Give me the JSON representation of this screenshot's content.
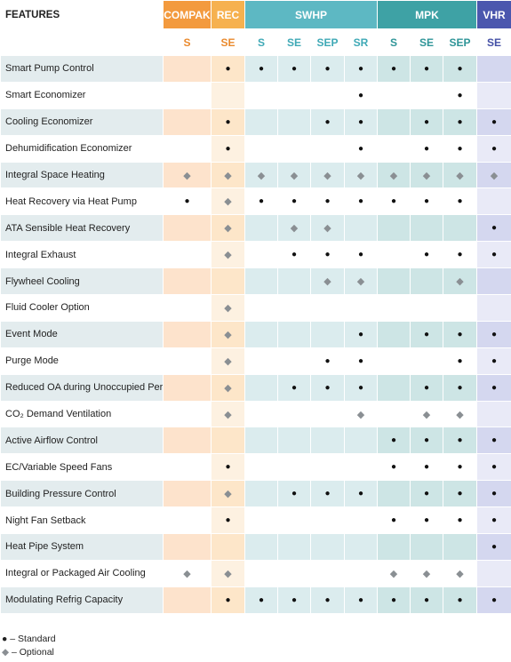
{
  "table": {
    "corner": "FEATURES",
    "groups": [
      {
        "name": "COMPAK",
        "columns": [
          "S"
        ]
      },
      {
        "name": "REC",
        "columns": [
          "SE"
        ]
      },
      {
        "name": "SWHP",
        "columns": [
          "S",
          "SE",
          "SEP",
          "SR"
        ]
      },
      {
        "name": "MPK",
        "columns": [
          "S",
          "SE",
          "SEP"
        ]
      },
      {
        "name": "VHR",
        "columns": [
          "SE"
        ]
      }
    ],
    "rows": [
      {
        "feature": "Smart Pump Control",
        "cells": [
          null,
          "●",
          "●",
          "●",
          "●",
          "●",
          "●",
          "●",
          "●",
          null
        ]
      },
      {
        "feature": "Smart Economizer",
        "cells": [
          null,
          null,
          null,
          null,
          null,
          "●",
          null,
          null,
          "●",
          null
        ]
      },
      {
        "feature": "Cooling Economizer",
        "cells": [
          null,
          "●",
          null,
          null,
          "●",
          "●",
          null,
          "●",
          "●",
          "●"
        ]
      },
      {
        "feature": "Dehumidification Economizer",
        "cells": [
          null,
          "●",
          null,
          null,
          null,
          "●",
          null,
          "●",
          "●",
          "●"
        ]
      },
      {
        "feature": "Integral Space Heating",
        "cells": [
          "◆",
          "◆",
          "◆",
          "◆",
          "◆",
          "◆",
          "◆",
          "◆",
          "◆",
          "◆"
        ]
      },
      {
        "feature": "Heat Recovery via Heat Pump",
        "cells": [
          "●",
          "◆",
          "●",
          "●",
          "●",
          "●",
          "●",
          "●",
          "●",
          null
        ]
      },
      {
        "feature": "ATA Sensible Heat Recovery",
        "cells": [
          null,
          "◆",
          null,
          "◆",
          "◆",
          null,
          null,
          null,
          null,
          "●"
        ]
      },
      {
        "feature": "Integral Exhaust",
        "cells": [
          null,
          "◆",
          null,
          "●",
          "●",
          "●",
          null,
          "●",
          "●",
          "●"
        ]
      },
      {
        "feature": "Flywheel Cooling",
        "cells": [
          null,
          null,
          null,
          null,
          "◆",
          "◆",
          null,
          null,
          "◆",
          null
        ]
      },
      {
        "feature": "Fluid Cooler Option",
        "cells": [
          null,
          "◆",
          null,
          null,
          null,
          null,
          null,
          null,
          null,
          null
        ]
      },
      {
        "feature": "Event Mode",
        "cells": [
          null,
          "◆",
          null,
          null,
          null,
          "●",
          null,
          "●",
          "●",
          "●"
        ]
      },
      {
        "feature": "Purge Mode",
        "cells": [
          null,
          "◆",
          null,
          null,
          "●",
          "●",
          null,
          null,
          "●",
          "●"
        ]
      },
      {
        "feature": "Reduced OA during Unoccupied Period",
        "cells": [
          null,
          "◆",
          null,
          "●",
          "●",
          "●",
          null,
          "●",
          "●",
          "●"
        ]
      },
      {
        "feature": "CO₂ Demand Ventilation",
        "cells": [
          null,
          "◆",
          null,
          null,
          null,
          "◆",
          null,
          "◆",
          "◆",
          null
        ]
      },
      {
        "feature": "Active Airflow Control",
        "cells": [
          null,
          null,
          null,
          null,
          null,
          null,
          "●",
          "●",
          "●",
          "●"
        ]
      },
      {
        "feature": "EC/Variable Speed Fans",
        "cells": [
          null,
          "●",
          null,
          null,
          null,
          null,
          "●",
          "●",
          "●",
          "●"
        ]
      },
      {
        "feature": "Building Pressure Control",
        "cells": [
          null,
          "◆",
          null,
          "●",
          "●",
          "●",
          null,
          "●",
          "●",
          "●"
        ]
      },
      {
        "feature": "Night Fan Setback",
        "cells": [
          null,
          "●",
          null,
          null,
          null,
          null,
          "●",
          "●",
          "●",
          "●"
        ]
      },
      {
        "feature": "Heat Pipe System",
        "cells": [
          null,
          null,
          null,
          null,
          null,
          null,
          null,
          null,
          null,
          "●"
        ]
      },
      {
        "feature": "Integral or Packaged Air Cooling",
        "cells": [
          "◆",
          "◆",
          null,
          null,
          null,
          null,
          "◆",
          "◆",
          "◆",
          null
        ]
      },
      {
        "feature": "Modulating Refrig Capacity",
        "cells": [
          null,
          "●",
          "●",
          "●",
          "●",
          "●",
          "●",
          "●",
          "●",
          "●"
        ]
      }
    ]
  },
  "legend": [
    {
      "symbol": "●",
      "text": "– Standard"
    },
    {
      "symbol": "◆",
      "text": "– Optional"
    }
  ]
}
